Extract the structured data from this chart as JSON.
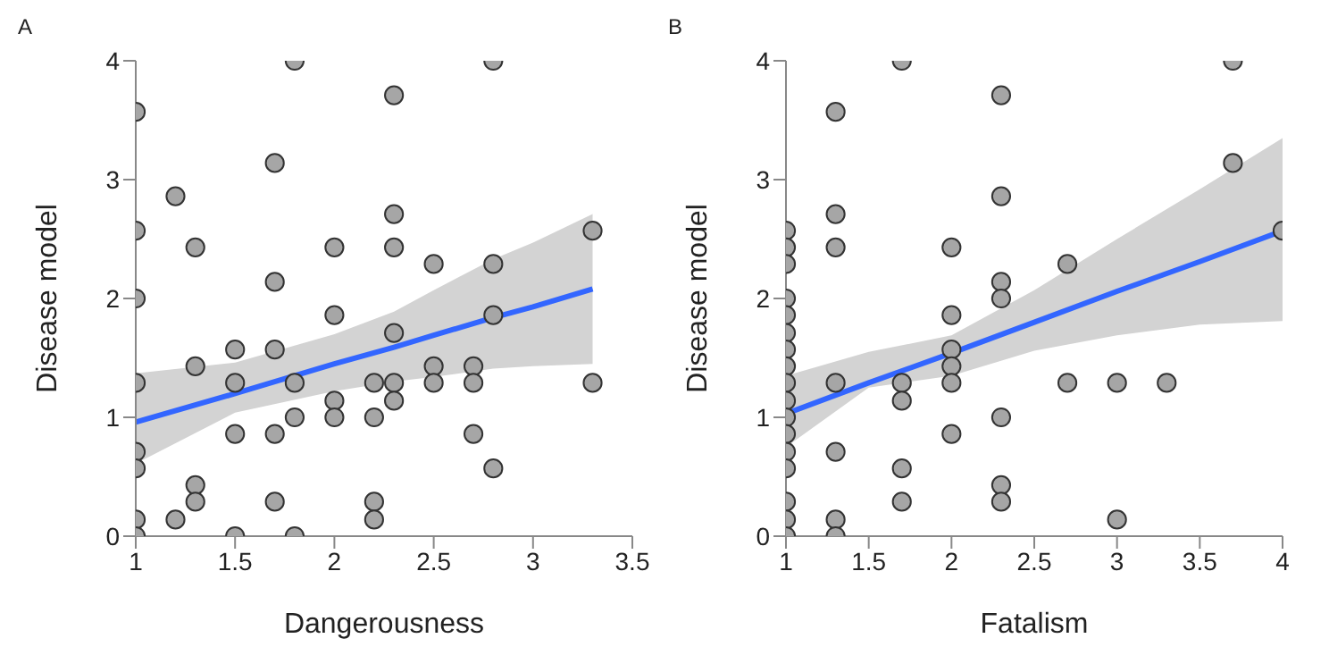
{
  "chart_data": [
    {
      "type": "scatter",
      "title": "A",
      "xlabel": "Dangerousness",
      "ylabel": "Disease model",
      "xlim": [
        1,
        3.5
      ],
      "xticks": [
        1,
        1.5,
        2,
        2.5,
        3,
        3.5
      ],
      "ylim": [
        0,
        4
      ],
      "yticks": [
        0,
        1,
        2,
        3,
        4
      ],
      "grid": false,
      "series": [
        {
          "marker": "circle",
          "color": "#a6a6a6",
          "x": [
            1,
            1,
            1,
            1,
            1,
            1,
            1,
            1,
            1.2,
            1.2,
            1.3,
            1.3,
            1.3,
            1.3,
            1.5,
            1.5,
            1.5,
            1.5,
            1.7,
            1.7,
            1.7,
            1.7,
            1.7,
            1.8,
            1.8,
            1.8,
            1.8,
            2,
            2,
            2,
            2,
            2.2,
            2.2,
            2.2,
            2.2,
            2.3,
            2.3,
            2.3,
            2.3,
            2.3,
            2.3,
            2.5,
            2.5,
            2.5,
            2.7,
            2.7,
            2.7,
            2.8,
            2.8,
            2.8,
            2.8,
            3.3,
            3.3
          ],
          "values": [
            3.57,
            2.57,
            2,
            1.29,
            0.71,
            0.57,
            0.14,
            0,
            2.86,
            0.14,
            2.43,
            1.43,
            0.43,
            0.29,
            1.57,
            1.29,
            0.86,
            0,
            3.14,
            2.14,
            1.57,
            0.86,
            0.29,
            4,
            1.29,
            1,
            0,
            2.43,
            1.86,
            1.14,
            1,
            1.29,
            1,
            0.29,
            0.14,
            3.71,
            2.71,
            2.43,
            1.71,
            1.29,
            1.14,
            2.29,
            1.43,
            1.29,
            1.43,
            1.29,
            0.86,
            4,
            2.29,
            1.86,
            0.57,
            2.57,
            1.29
          ]
        },
        {
          "type": "line",
          "color": "#3366ff",
          "x": [
            1,
            1.5,
            2,
            2.3,
            2.5,
            2.8,
            3,
            3.3
          ],
          "values": [
            0.96,
            1.2,
            1.45,
            1.59,
            1.69,
            1.84,
            1.93,
            2.08
          ],
          "lower": [
            0.61,
            1.04,
            1.22,
            1.3,
            1.34,
            1.41,
            1.43,
            1.45
          ],
          "upper": [
            1.37,
            1.46,
            1.7,
            1.89,
            2.07,
            2.33,
            2.47,
            2.71
          ]
        }
      ]
    },
    {
      "type": "scatter",
      "title": "B",
      "xlabel": "Fatalism",
      "ylabel": "Disease model",
      "xlim": [
        1,
        4
      ],
      "xticks": [
        1,
        1.5,
        2,
        2.5,
        3,
        3.5,
        4
      ],
      "ylim": [
        0,
        4
      ],
      "yticks": [
        0,
        1,
        2,
        3,
        4
      ],
      "grid": false,
      "series": [
        {
          "marker": "circle",
          "color": "#a6a6a6",
          "x": [
            1,
            1,
            1,
            1,
            1,
            1,
            1,
            1,
            1,
            1,
            1,
            1,
            1,
            1,
            1,
            1,
            1,
            1.3,
            1.3,
            1.3,
            1.3,
            1.3,
            1.3,
            1.3,
            1.7,
            1.7,
            1.7,
            1.7,
            1.7,
            2,
            2,
            2,
            2,
            2,
            2,
            2.3,
            2.3,
            2.3,
            2.3,
            2.3,
            2.3,
            2.3,
            2.7,
            2.7,
            3,
            3,
            3.3,
            3.7,
            3.7,
            4
          ],
          "values": [
            2.57,
            2.43,
            2.29,
            2,
            1.86,
            1.71,
            1.57,
            1.43,
            1.29,
            1.14,
            1,
            0.86,
            0.71,
            0.57,
            0.29,
            0.14,
            0,
            3.57,
            2.71,
            2.43,
            1.29,
            0.71,
            0.14,
            0,
            4,
            1.29,
            1.14,
            0.57,
            0.29,
            2.43,
            1.86,
            1.57,
            1.43,
            1.29,
            0.86,
            3.71,
            2.86,
            2.14,
            2,
            1,
            0.43,
            0.29,
            2.29,
            1.29,
            1.29,
            0.14,
            1.29,
            4,
            3.14,
            2.57
          ]
        },
        {
          "type": "line",
          "color": "#3366ff",
          "x": [
            1,
            1.5,
            2,
            2.5,
            3,
            3.5,
            4
          ],
          "values": [
            1.03,
            1.29,
            1.54,
            1.8,
            2.06,
            2.31,
            2.57
          ],
          "lower": [
            0.75,
            1.25,
            1.35,
            1.56,
            1.69,
            1.78,
            1.81
          ],
          "upper": [
            1.35,
            1.55,
            1.69,
            2.07,
            2.5,
            2.92,
            3.35
          ]
        }
      ]
    }
  ]
}
